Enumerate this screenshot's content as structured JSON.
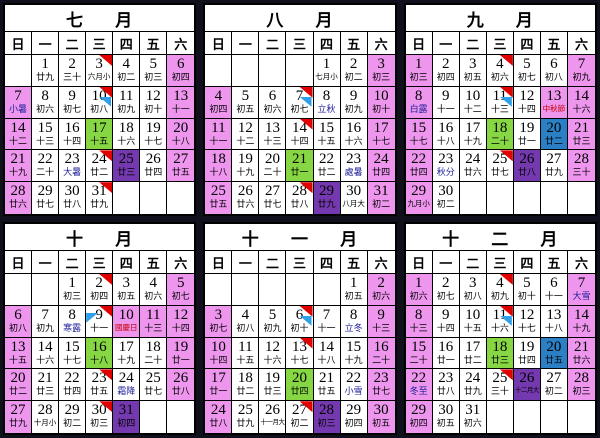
{
  "colors": {
    "background": "#10101c",
    "cell_default": "#ffffff",
    "day_off_pink": "#EE96EE",
    "third_wednesday_green": "#86D743",
    "last_thursday_purple": "#7439AE",
    "friday_blue": "#2B7FC4",
    "red_flag_marker": "#E00000",
    "blue_flag_marker": "#2F9FE8",
    "holiday_text": "#C40000",
    "solar_term_text": "#202099"
  },
  "weekdays": [
    "日",
    "一",
    "二",
    "三",
    "四",
    "五",
    "六"
  ],
  "months": [
    {
      "title": "七 月",
      "cells": [
        {},
        {
          "d": "1",
          "l": "廿九"
        },
        {
          "d": "2",
          "l": "三十"
        },
        {
          "d": "3",
          "l": "六月小",
          "m": "red"
        },
        {
          "d": "4",
          "l": "初二"
        },
        {
          "d": "5",
          "l": "初三"
        },
        {
          "d": "6",
          "l": "初四",
          "bg": "pink"
        },
        {
          "d": "7",
          "l": "小暑",
          "bg": "pink",
          "t": "term"
        },
        {
          "d": "8",
          "l": "初六"
        },
        {
          "d": "9",
          "l": "初七"
        },
        {
          "d": "10",
          "l": "初八",
          "m": "redblue"
        },
        {
          "d": "11",
          "l": "初九"
        },
        {
          "d": "12",
          "l": "初十"
        },
        {
          "d": "13",
          "l": "十一",
          "bg": "pink"
        },
        {
          "d": "14",
          "l": "十二",
          "bg": "pink"
        },
        {
          "d": "15",
          "l": "十三"
        },
        {
          "d": "16",
          "l": "十四"
        },
        {
          "d": "17",
          "l": "十五",
          "bg": "green"
        },
        {
          "d": "18",
          "l": "十六"
        },
        {
          "d": "19",
          "l": "十七"
        },
        {
          "d": "20",
          "l": "十八",
          "bg": "pink"
        },
        {
          "d": "21",
          "l": "十九",
          "bg": "pink"
        },
        {
          "d": "22",
          "l": "二十"
        },
        {
          "d": "23",
          "l": "大暑",
          "t": "term"
        },
        {
          "d": "24",
          "l": "廿二",
          "m": "red"
        },
        {
          "d": "25",
          "l": "廿三",
          "bg": "purple"
        },
        {
          "d": "26",
          "l": "廿四"
        },
        {
          "d": "27",
          "l": "廿五",
          "bg": "pink"
        },
        {
          "d": "28",
          "l": "廿六",
          "bg": "pink"
        },
        {
          "d": "29",
          "l": "廿七"
        },
        {
          "d": "30",
          "l": "廿八"
        },
        {
          "d": "31",
          "l": "廿九",
          "m": "red"
        },
        {},
        {},
        {}
      ]
    },
    {
      "title": "八 月",
      "cells": [
        {},
        {},
        {},
        {},
        {
          "d": "1",
          "l": "七月小"
        },
        {
          "d": "2",
          "l": "初二"
        },
        {
          "d": "3",
          "l": "初三",
          "bg": "pink"
        },
        {
          "d": "4",
          "l": "初四",
          "bg": "pink"
        },
        {
          "d": "5",
          "l": "初五"
        },
        {
          "d": "6",
          "l": "初六"
        },
        {
          "d": "7",
          "l": "初七",
          "m": "redblue"
        },
        {
          "d": "8",
          "l": "立秋",
          "t": "term"
        },
        {
          "d": "9",
          "l": "初九"
        },
        {
          "d": "10",
          "l": "初十",
          "bg": "pink"
        },
        {
          "d": "11",
          "l": "十一",
          "bg": "pink"
        },
        {
          "d": "12",
          "l": "十二"
        },
        {
          "d": "13",
          "l": "十三"
        },
        {
          "d": "14",
          "l": "十四",
          "m": "red"
        },
        {
          "d": "15",
          "l": "十五"
        },
        {
          "d": "16",
          "l": "十六"
        },
        {
          "d": "17",
          "l": "十七",
          "bg": "pink"
        },
        {
          "d": "18",
          "l": "十八",
          "bg": "pink"
        },
        {
          "d": "19",
          "l": "十九"
        },
        {
          "d": "20",
          "l": "二十"
        },
        {
          "d": "21",
          "l": "廿一",
          "bg": "green"
        },
        {
          "d": "22",
          "l": "廿二"
        },
        {
          "d": "23",
          "l": "處暑",
          "t": "term"
        },
        {
          "d": "24",
          "l": "廿四",
          "bg": "pink"
        },
        {
          "d": "25",
          "l": "廿五",
          "bg": "pink"
        },
        {
          "d": "26",
          "l": "廿六"
        },
        {
          "d": "27",
          "l": "廿七"
        },
        {
          "d": "28",
          "l": "廿八",
          "m": "red"
        },
        {
          "d": "29",
          "l": "廿九",
          "bg": "purple"
        },
        {
          "d": "30",
          "l": "八月大"
        },
        {
          "d": "31",
          "l": "初二",
          "bg": "pink"
        }
      ]
    },
    {
      "title": "九 月",
      "cells": [
        {
          "d": "1",
          "l": "初三",
          "bg": "pink"
        },
        {
          "d": "2",
          "l": "初四"
        },
        {
          "d": "3",
          "l": "初五"
        },
        {
          "d": "4",
          "l": "初六",
          "m": "red"
        },
        {
          "d": "5",
          "l": "初七"
        },
        {
          "d": "6",
          "l": "初八"
        },
        {
          "d": "7",
          "l": "初九",
          "bg": "pink"
        },
        {
          "d": "8",
          "l": "白露",
          "bg": "pink",
          "t": "term"
        },
        {
          "d": "9",
          "l": "十一"
        },
        {
          "d": "10",
          "l": "十二"
        },
        {
          "d": "11",
          "l": "十三",
          "m": "redblue"
        },
        {
          "d": "12",
          "l": "十四"
        },
        {
          "d": "13",
          "l": "中秋節",
          "bg": "pink",
          "t": "holiday"
        },
        {
          "d": "14",
          "l": "十六",
          "bg": "pink"
        },
        {
          "d": "15",
          "l": "十七",
          "bg": "pink"
        },
        {
          "d": "16",
          "l": "十八"
        },
        {
          "d": "17",
          "l": "十九"
        },
        {
          "d": "18",
          "l": "二十",
          "bg": "green"
        },
        {
          "d": "19",
          "l": "廿一"
        },
        {
          "d": "20",
          "l": "廿二",
          "bg": "blue"
        },
        {
          "d": "21",
          "l": "廿三",
          "bg": "pink"
        },
        {
          "d": "22",
          "l": "廿四",
          "bg": "pink"
        },
        {
          "d": "23",
          "l": "秋分",
          "t": "term"
        },
        {
          "d": "24",
          "l": "廿六"
        },
        {
          "d": "25",
          "l": "廿七",
          "m": "red"
        },
        {
          "d": "26",
          "l": "廿八",
          "bg": "purple"
        },
        {
          "d": "27",
          "l": "廿九"
        },
        {
          "d": "28",
          "l": "三十",
          "bg": "pink"
        },
        {
          "d": "29",
          "l": "九月小",
          "bg": "pink"
        },
        {
          "d": "30",
          "l": "初二"
        },
        {},
        {},
        {},
        {},
        {}
      ]
    },
    {
      "title": "十 月",
      "cells": [
        {},
        {},
        {
          "d": "1",
          "l": "初三"
        },
        {
          "d": "2",
          "l": "初四",
          "m": "red"
        },
        {
          "d": "3",
          "l": "初五"
        },
        {
          "d": "4",
          "l": "初六"
        },
        {
          "d": "5",
          "l": "初七",
          "bg": "pink"
        },
        {
          "d": "6",
          "l": "初八",
          "bg": "pink"
        },
        {
          "d": "7",
          "l": "初九"
        },
        {
          "d": "8",
          "l": "寒露",
          "t": "term"
        },
        {
          "d": "9",
          "l": "十一",
          "m": "bluered"
        },
        {
          "d": "10",
          "l": "國慶日",
          "bg": "pink",
          "t": "holiday"
        },
        {
          "d": "11",
          "l": "十三",
          "bg": "pink"
        },
        {
          "d": "12",
          "l": "十四",
          "bg": "pink"
        },
        {
          "d": "13",
          "l": "十五",
          "bg": "pink"
        },
        {
          "d": "14",
          "l": "十六"
        },
        {
          "d": "15",
          "l": "十七"
        },
        {
          "d": "16",
          "l": "十八",
          "bg": "green"
        },
        {
          "d": "17",
          "l": "十九"
        },
        {
          "d": "18",
          "l": "二十"
        },
        {
          "d": "19",
          "l": "廿一",
          "bg": "pink"
        },
        {
          "d": "20",
          "l": "廿二",
          "bg": "pink"
        },
        {
          "d": "21",
          "l": "廿三"
        },
        {
          "d": "22",
          "l": "廿四"
        },
        {
          "d": "23",
          "l": "廿五",
          "m": "red"
        },
        {
          "d": "24",
          "l": "霜降",
          "t": "term"
        },
        {
          "d": "25",
          "l": "廿七"
        },
        {
          "d": "26",
          "l": "廿八",
          "bg": "pink"
        },
        {
          "d": "27",
          "l": "廿九",
          "bg": "pink"
        },
        {
          "d": "28",
          "l": "十月小"
        },
        {
          "d": "29",
          "l": "初二"
        },
        {
          "d": "30",
          "l": "初三",
          "m": "red"
        },
        {
          "d": "31",
          "l": "初四",
          "bg": "purple"
        },
        {},
        {}
      ]
    },
    {
      "title": "十 一 月",
      "cells": [
        {},
        {},
        {},
        {},
        {},
        {
          "d": "1",
          "l": "初五"
        },
        {
          "d": "2",
          "l": "初六",
          "bg": "pink"
        },
        {
          "d": "3",
          "l": "初七",
          "bg": "pink"
        },
        {
          "d": "4",
          "l": "初八"
        },
        {
          "d": "5",
          "l": "初九"
        },
        {
          "d": "6",
          "l": "初十",
          "m": "redblue"
        },
        {
          "d": "7",
          "l": "十一"
        },
        {
          "d": "8",
          "l": "立冬",
          "t": "term"
        },
        {
          "d": "9",
          "l": "十三",
          "bg": "pink"
        },
        {
          "d": "10",
          "l": "十四",
          "bg": "pink"
        },
        {
          "d": "11",
          "l": "十五"
        },
        {
          "d": "12",
          "l": "十六"
        },
        {
          "d": "13",
          "l": "十七",
          "m": "red"
        },
        {
          "d": "14",
          "l": "十八"
        },
        {
          "d": "15",
          "l": "十九"
        },
        {
          "d": "16",
          "l": "二十",
          "bg": "pink"
        },
        {
          "d": "17",
          "l": "廿一",
          "bg": "pink"
        },
        {
          "d": "18",
          "l": "廿二"
        },
        {
          "d": "19",
          "l": "廿三"
        },
        {
          "d": "20",
          "l": "廿四",
          "bg": "green"
        },
        {
          "d": "21",
          "l": "廿五"
        },
        {
          "d": "22",
          "l": "小雪",
          "t": "term"
        },
        {
          "d": "23",
          "l": "廿七",
          "bg": "pink"
        },
        {
          "d": "24",
          "l": "廿八",
          "bg": "pink"
        },
        {
          "d": "25",
          "l": "廿九"
        },
        {
          "d": "26",
          "l": "十一月大"
        },
        {
          "d": "27",
          "l": "初二",
          "m": "red"
        },
        {
          "d": "28",
          "l": "初三",
          "bg": "purple"
        },
        {
          "d": "29",
          "l": "初四"
        },
        {
          "d": "30",
          "l": "初五",
          "bg": "pink"
        }
      ]
    },
    {
      "title": "十 二 月",
      "cells": [
        {
          "d": "1",
          "l": "初六",
          "bg": "pink"
        },
        {
          "d": "2",
          "l": "初七"
        },
        {
          "d": "3",
          "l": "初八"
        },
        {
          "d": "4",
          "l": "初九",
          "m": "red"
        },
        {
          "d": "5",
          "l": "初十"
        },
        {
          "d": "6",
          "l": "十一"
        },
        {
          "d": "7",
          "l": "大雪",
          "bg": "pink",
          "t": "term"
        },
        {
          "d": "8",
          "l": "十三",
          "bg": "pink"
        },
        {
          "d": "9",
          "l": "十四"
        },
        {
          "d": "10",
          "l": "十五"
        },
        {
          "d": "11",
          "l": "十六",
          "m": "redblue"
        },
        {
          "d": "12",
          "l": "十七"
        },
        {
          "d": "13",
          "l": "十八"
        },
        {
          "d": "14",
          "l": "十九",
          "bg": "pink"
        },
        {
          "d": "15",
          "l": "二十",
          "bg": "pink"
        },
        {
          "d": "16",
          "l": "廿一"
        },
        {
          "d": "17",
          "l": "廿二"
        },
        {
          "d": "18",
          "l": "廿三",
          "bg": "green"
        },
        {
          "d": "19",
          "l": "廿四"
        },
        {
          "d": "20",
          "l": "廿五",
          "bg": "blue"
        },
        {
          "d": "21",
          "l": "廿六",
          "bg": "pink"
        },
        {
          "d": "22",
          "l": "冬至",
          "bg": "pink",
          "t": "term"
        },
        {
          "d": "23",
          "l": "廿八"
        },
        {
          "d": "24",
          "l": "廿九"
        },
        {
          "d": "25",
          "l": "三十",
          "m": "red"
        },
        {
          "d": "26",
          "l": "十二月大",
          "bg": "purple"
        },
        {
          "d": "27",
          "l": "初二"
        },
        {
          "d": "28",
          "l": "初三",
          "bg": "pink"
        },
        {
          "d": "29",
          "l": "初四",
          "bg": "pink"
        },
        {
          "d": "30",
          "l": "初五"
        },
        {
          "d": "31",
          "l": "初六"
        },
        {},
        {},
        {},
        {}
      ]
    }
  ]
}
